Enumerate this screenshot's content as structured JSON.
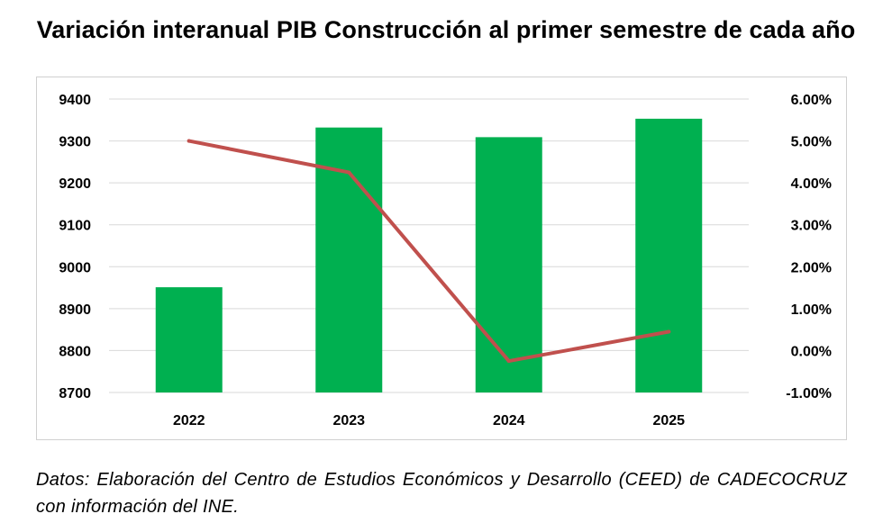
{
  "title": "Variación interanual PIB Construcción al primer semestre de cada año",
  "source_note": "Datos: Elaboración del Centro de Estudios Económicos y Desarrollo (CEED) de CADECOCRUZ con información del INE.",
  "chart_data": {
    "type": "bar",
    "categories": [
      "2022",
      "2023",
      "2024",
      "2025"
    ],
    "series": [
      {
        "values": [
          8951,
          9332,
          9309,
          9353
        ],
        "type": "bar",
        "axis": "left",
        "color": "#00B050"
      },
      {
        "values": [
          5.0,
          4.25,
          -0.25,
          0.45
        ],
        "type": "line",
        "axis": "right",
        "unit": "%",
        "color": "#C0504D"
      }
    ],
    "ylim": [
      8700,
      9400
    ],
    "y_ticks": [
      "9400",
      "9300",
      "9200",
      "9100",
      "9000",
      "8900",
      "8800",
      "8700"
    ],
    "y2lim": [
      -1.0,
      6.0
    ],
    "y2_ticks": [
      "6.00%",
      "5.00%",
      "4.00%",
      "3.00%",
      "2.00%",
      "1.00%",
      "0.00%",
      "-1.00%"
    ],
    "grid": true,
    "legend": "none"
  }
}
